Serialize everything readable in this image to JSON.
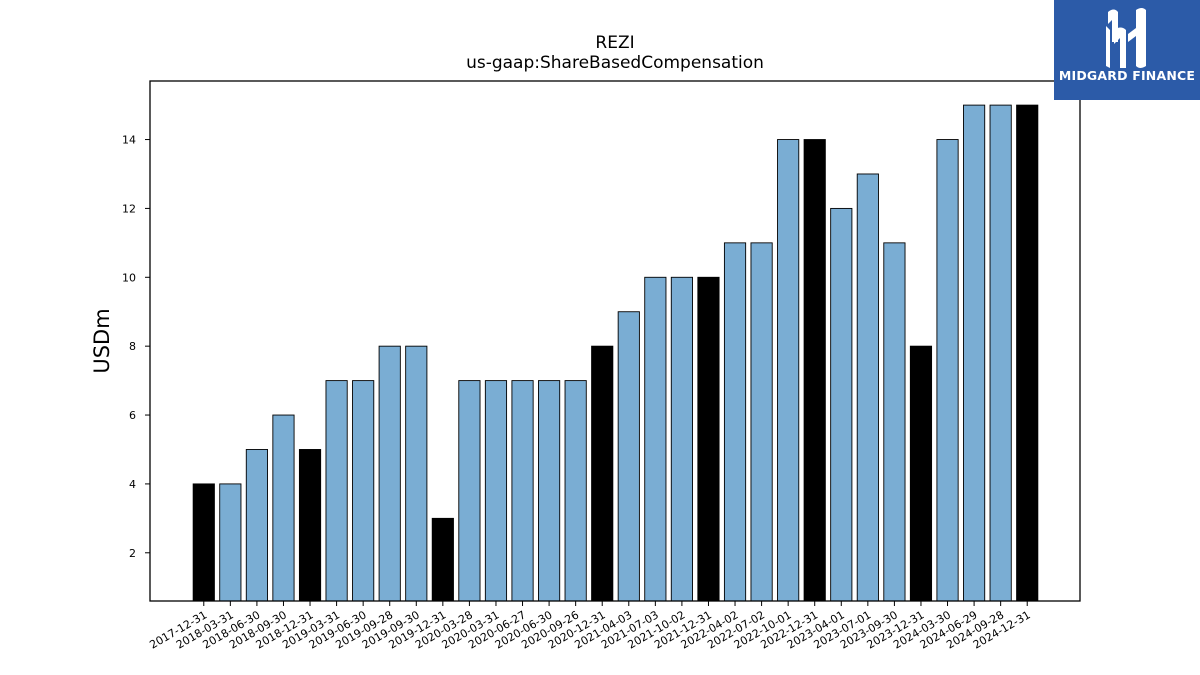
{
  "chart_data": {
    "type": "bar",
    "title": "REZI",
    "subtitle": "us-gaap:ShareBasedCompensation",
    "ylabel": "USDm",
    "xlabel": "",
    "ylim": [
      0.6,
      15.7
    ],
    "yticks": [
      2,
      4,
      6,
      8,
      10,
      12,
      14
    ],
    "grid": false,
    "colors": {
      "quarter": "#7aadd3",
      "year_end": "#000000",
      "edge": "#000000"
    },
    "categories": [
      "2017-12-31",
      "2018-03-31",
      "2018-06-30",
      "2018-09-30",
      "2018-12-31",
      "2019-03-31",
      "2019-06-30",
      "2019-09-28",
      "2019-09-30",
      "2019-12-31",
      "2020-03-28",
      "2020-03-31",
      "2020-06-27",
      "2020-06-30",
      "2020-09-26",
      "2020-12-31",
      "2021-04-03",
      "2021-07-03",
      "2021-10-02",
      "2021-12-31",
      "2022-04-02",
      "2022-07-02",
      "2022-10-01",
      "2022-12-31",
      "2023-04-01",
      "2023-07-01",
      "2023-09-30",
      "2023-12-31",
      "2024-03-30",
      "2024-06-29",
      "2024-09-28",
      "2024-12-31"
    ],
    "values": [
      4,
      4,
      5,
      6,
      5,
      7,
      7,
      8,
      8,
      3,
      7,
      7,
      7,
      7,
      7,
      8,
      9,
      10,
      10,
      10,
      11,
      11,
      14,
      14,
      12,
      13,
      11,
      8,
      14,
      15,
      15,
      15
    ],
    "bar_color_keys": [
      "year_end",
      "quarter",
      "quarter",
      "quarter",
      "year_end",
      "quarter",
      "quarter",
      "quarter",
      "quarter",
      "year_end",
      "quarter",
      "quarter",
      "quarter",
      "quarter",
      "quarter",
      "year_end",
      "quarter",
      "quarter",
      "quarter",
      "year_end",
      "quarter",
      "quarter",
      "quarter",
      "year_end",
      "quarter",
      "quarter",
      "quarter",
      "year_end",
      "quarter",
      "quarter",
      "quarter",
      "year_end"
    ]
  },
  "logo": {
    "text": "MIDGARD FINANCE",
    "icon": "midgard-logo-icon"
  }
}
